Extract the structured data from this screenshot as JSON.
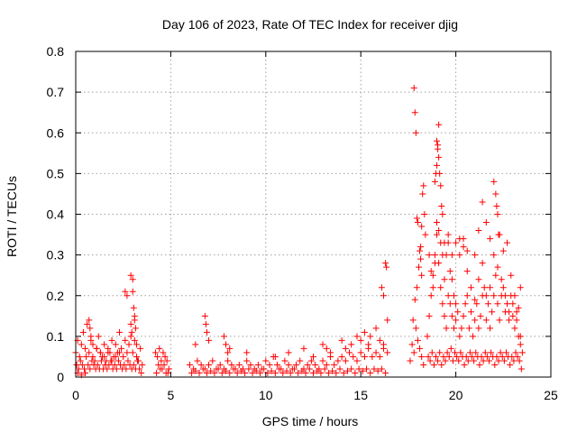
{
  "chart_data": {
    "type": "scatter",
    "title": "Day 106 of 2023, Rate Of TEC Index for receiver djig",
    "xlabel": "GPS time / hours",
    "ylabel": "ROTI / TECUs",
    "xlim": [
      0,
      25
    ],
    "ylim": [
      0,
      0.8
    ],
    "xticks": [
      0,
      5,
      10,
      15,
      20,
      25
    ],
    "yticks": [
      0,
      0.1,
      0.2,
      0.3,
      0.4,
      0.5,
      0.6,
      0.7,
      0.8
    ],
    "xtick_labels": [
      "0",
      "5",
      "10",
      "15",
      "20",
      "25"
    ],
    "ytick_labels": [
      "0",
      "0.1",
      "0.2",
      "0.3",
      "0.4",
      "0.5",
      "0.6",
      "0.7",
      "0.8"
    ],
    "grid": true,
    "marker": "+",
    "color": "#ff0000",
    "series": [
      {
        "x": [
          0.0,
          0.1,
          0.2,
          0.3,
          0.4,
          0.5,
          0.6,
          0.7,
          0.8,
          0.9,
          1.0,
          1.1,
          1.2,
          1.3,
          1.4,
          1.5,
          1.6,
          1.7,
          1.8,
          1.9,
          2.0,
          2.1,
          2.2,
          2.3,
          2.4,
          2.5,
          2.6,
          2.7,
          2.8,
          2.9,
          3.0,
          3.1,
          3.2,
          3.3,
          3.4,
          3.5,
          0.05,
          0.15,
          0.25,
          0.35,
          0.45,
          0.55,
          0.65,
          0.75,
          0.85,
          0.95,
          1.05,
          1.15,
          1.25,
          1.35,
          1.45,
          1.55,
          1.65,
          1.75,
          1.85,
          1.95,
          2.05,
          2.15,
          2.25,
          2.35,
          2.45,
          2.55,
          2.65,
          2.75,
          2.85,
          2.95,
          3.05,
          3.15,
          3.25,
          3.35,
          3.45,
          0.1,
          0.3,
          0.5,
          0.7,
          0.75,
          0.8,
          0.9,
          1.1,
          1.3,
          1.5,
          1.7,
          1.9,
          2.1,
          2.3,
          2.6,
          2.7,
          2.9,
          3.0,
          3.0,
          3.05,
          3.1,
          3.1,
          3.15,
          2.9,
          2.95,
          3.2,
          4.2,
          4.3,
          4.4,
          4.5,
          4.6,
          4.7,
          4.8,
          4.9,
          4.25,
          4.45,
          4.65,
          4.85,
          4.35,
          4.55,
          4.75,
          6.0,
          6.2,
          6.4,
          6.6,
          6.8,
          7.0,
          7.2,
          7.4,
          7.6,
          7.8,
          8.0,
          8.2,
          8.4,
          8.6,
          8.8,
          9.0,
          9.2,
          9.4,
          9.6,
          9.8,
          10.0,
          10.2,
          10.4,
          10.6,
          10.8,
          11.0,
          11.2,
          11.4,
          11.6,
          11.8,
          12.0,
          12.2,
          12.4,
          12.6,
          12.8,
          13.0,
          13.2,
          13.4,
          13.6,
          13.8,
          14.0,
          14.2,
          14.4,
          14.6,
          14.8,
          15.0,
          15.2,
          15.4,
          15.6,
          15.8,
          16.0,
          16.2,
          16.4,
          6.1,
          6.3,
          6.5,
          6.7,
          6.9,
          7.1,
          7.3,
          7.5,
          7.7,
          7.9,
          8.1,
          8.3,
          8.5,
          8.7,
          8.9,
          9.1,
          9.3,
          9.5,
          9.7,
          9.9,
          10.1,
          10.3,
          10.5,
          10.7,
          10.9,
          11.1,
          11.3,
          11.5,
          11.7,
          11.9,
          12.1,
          12.3,
          12.5,
          12.7,
          12.9,
          13.1,
          13.3,
          13.5,
          13.7,
          13.9,
          14.1,
          14.3,
          14.5,
          14.7,
          14.9,
          15.1,
          15.3,
          15.5,
          15.7,
          15.9,
          16.1,
          16.3,
          6.3,
          6.8,
          6.85,
          6.9,
          7.0,
          7.8,
          7.9,
          8.0,
          8.1,
          9.0,
          10.5,
          11.2,
          12.0,
          12.5,
          13.0,
          13.2,
          13.4,
          14.0,
          14.2,
          14.5,
          14.8,
          15.0,
          15.2,
          15.4,
          15.5,
          15.8,
          16.0,
          16.2,
          16.3,
          16.35,
          16.1,
          16.2,
          16.4,
          17.6,
          17.7,
          17.8,
          17.9,
          18.0,
          18.1,
          18.2,
          18.3,
          17.75,
          17.85,
          17.95,
          18.05,
          18.15,
          17.8,
          17.85,
          17.9,
          17.95,
          18.0,
          18.1,
          18.2,
          18.25,
          18.3,
          18.35,
          18.4,
          18.15,
          18.2,
          18.5,
          18.6,
          18.7,
          18.8,
          18.9,
          19.0,
          19.1,
          19.2,
          19.3,
          19.4,
          19.5,
          19.6,
          19.7,
          19.8,
          19.9,
          20.0,
          20.1,
          20.2,
          20.3,
          20.4,
          20.5,
          20.6,
          20.7,
          20.8,
          20.9,
          21.0,
          21.1,
          21.2,
          21.3,
          21.4,
          21.5,
          21.6,
          21.7,
          21.8,
          21.9,
          22.0,
          22.1,
          22.2,
          22.3,
          22.4,
          22.5,
          22.6,
          22.7,
          22.8,
          22.9,
          23.0,
          23.1,
          23.2,
          23.3,
          23.4,
          23.5,
          18.55,
          18.65,
          18.75,
          18.85,
          18.95,
          19.05,
          19.15,
          19.25,
          19.35,
          19.45,
          19.55,
          19.65,
          19.75,
          19.85,
          19.95,
          20.05,
          20.15,
          20.25,
          20.35,
          20.45,
          20.55,
          20.65,
          20.75,
          20.85,
          20.95,
          21.05,
          21.15,
          21.25,
          21.35,
          21.45,
          21.55,
          21.65,
          21.75,
          21.85,
          21.95,
          22.05,
          22.15,
          22.25,
          22.35,
          22.45,
          22.55,
          22.65,
          22.75,
          22.85,
          22.95,
          23.05,
          23.15,
          23.25,
          23.35,
          23.45,
          18.6,
          18.7,
          18.8,
          18.9,
          19.0,
          19.1,
          19.2,
          19.3,
          19.4,
          19.5,
          19.6,
          19.7,
          19.8,
          19.9,
          20.0,
          20.2,
          20.4,
          20.6,
          20.8,
          21.0,
          21.2,
          21.4,
          21.6,
          21.8,
          22.0,
          22.2,
          22.4,
          22.6,
          22.8,
          23.0,
          23.2,
          23.4,
          18.9,
          18.95,
          19.0,
          19.05,
          19.1,
          19.0,
          19.05,
          19.1,
          19.15,
          19.2,
          19.25,
          19.3,
          19.4,
          19.6,
          19.8,
          20.0,
          20.2,
          20.4,
          20.6,
          21.0,
          21.2,
          21.4,
          21.6,
          21.8,
          22.0,
          22.1,
          22.15,
          22.2,
          22.25,
          22.3,
          22.5,
          22.7,
          22.9,
          23.1,
          23.3,
          23.4
        ],
        "y": [
          0.06,
          0.09,
          0.05,
          0.08,
          0.11,
          0.07,
          0.13,
          0.06,
          0.09,
          0.05,
          0.04,
          0.07,
          0.1,
          0.06,
          0.05,
          0.08,
          0.04,
          0.07,
          0.06,
          0.09,
          0.05,
          0.08,
          0.06,
          0.11,
          0.07,
          0.05,
          0.09,
          0.06,
          0.08,
          0.1,
          0.06,
          0.09,
          0.05,
          0.04,
          0.07,
          0.03,
          0.03,
          0.02,
          0.04,
          0.03,
          0.02,
          0.05,
          0.03,
          0.02,
          0.04,
          0.03,
          0.02,
          0.03,
          0.02,
          0.04,
          0.02,
          0.03,
          0.02,
          0.03,
          0.04,
          0.02,
          0.03,
          0.02,
          0.04,
          0.03,
          0.02,
          0.03,
          0.02,
          0.04,
          0.03,
          0.02,
          0.03,
          0.02,
          0.04,
          0.02,
          0.01,
          0.01,
          0.005,
          0.01,
          0.14,
          0.12,
          0.1,
          0.08,
          0.07,
          0.06,
          0.05,
          0.06,
          0.04,
          0.05,
          0.06,
          0.21,
          0.2,
          0.25,
          0.24,
          0.21,
          0.17,
          0.15,
          0.14,
          0.12,
          0.13,
          0.11,
          0.08,
          0.06,
          0.05,
          0.07,
          0.04,
          0.06,
          0.05,
          0.04,
          0.02,
          0.01,
          0.02,
          0.03,
          0.01,
          0.03,
          0.02,
          0.01,
          0.03,
          0.02,
          0.04,
          0.03,
          0.02,
          0.03,
          0.04,
          0.02,
          0.03,
          0.02,
          0.04,
          0.03,
          0.02,
          0.03,
          0.02,
          0.04,
          0.03,
          0.02,
          0.03,
          0.02,
          0.04,
          0.03,
          0.05,
          0.03,
          0.02,
          0.04,
          0.03,
          0.02,
          0.03,
          0.04,
          0.02,
          0.03,
          0.04,
          0.03,
          0.02,
          0.04,
          0.03,
          0.05,
          0.03,
          0.04,
          0.05,
          0.04,
          0.06,
          0.05,
          0.04,
          0.06,
          0.05,
          0.07,
          0.05,
          0.06,
          0.05,
          0.07,
          0.06,
          0.01,
          0.015,
          0.01,
          0.02,
          0.01,
          0.015,
          0.01,
          0.02,
          0.01,
          0.015,
          0.01,
          0.02,
          0.01,
          0.015,
          0.01,
          0.02,
          0.01,
          0.015,
          0.01,
          0.02,
          0.01,
          0.015,
          0.01,
          0.02,
          0.01,
          0.015,
          0.01,
          0.02,
          0.01,
          0.015,
          0.01,
          0.02,
          0.01,
          0.015,
          0.01,
          0.02,
          0.01,
          0.015,
          0.01,
          0.02,
          0.01,
          0.015,
          0.02,
          0.01,
          0.02,
          0.015,
          0.02,
          0.01,
          0.02,
          0.015,
          0.02,
          0.01,
          0.08,
          0.15,
          0.13,
          0.11,
          0.09,
          0.1,
          0.08,
          0.06,
          0.07,
          0.06,
          0.05,
          0.06,
          0.07,
          0.05,
          0.08,
          0.07,
          0.06,
          0.09,
          0.07,
          0.08,
          0.1,
          0.09,
          0.11,
          0.08,
          0.1,
          0.12,
          0.09,
          0.08,
          0.28,
          0.27,
          0.22,
          0.2,
          0.14,
          0.04,
          0.08,
          0.06,
          0.12,
          0.09,
          0.07,
          0.05,
          0.03,
          0.14,
          0.19,
          0.22,
          0.27,
          0.32,
          0.71,
          0.65,
          0.6,
          0.39,
          0.38,
          0.31,
          0.37,
          0.45,
          0.47,
          0.4,
          0.35,
          0.29,
          0.25,
          0.1,
          0.15,
          0.2,
          0.25,
          0.3,
          0.35,
          0.28,
          0.22,
          0.18,
          0.15,
          0.12,
          0.2,
          0.18,
          0.15,
          0.12,
          0.14,
          0.16,
          0.1,
          0.12,
          0.15,
          0.18,
          0.2,
          0.12,
          0.16,
          0.1,
          0.14,
          0.18,
          0.12,
          0.15,
          0.2,
          0.22,
          0.14,
          0.18,
          0.12,
          0.16,
          0.2,
          0.25,
          0.18,
          0.14,
          0.2,
          0.22,
          0.16,
          0.18,
          0.14,
          0.2,
          0.15,
          0.12,
          0.16,
          0.1,
          0.08,
          0.06,
          0.05,
          0.04,
          0.06,
          0.03,
          0.05,
          0.04,
          0.06,
          0.03,
          0.05,
          0.04,
          0.06,
          0.05,
          0.07,
          0.04,
          0.06,
          0.05,
          0.04,
          0.06,
          0.05,
          0.03,
          0.05,
          0.04,
          0.06,
          0.05,
          0.04,
          0.06,
          0.05,
          0.03,
          0.05,
          0.04,
          0.06,
          0.05,
          0.04,
          0.06,
          0.05,
          0.03,
          0.05,
          0.04,
          0.06,
          0.05,
          0.04,
          0.06,
          0.05,
          0.03,
          0.05,
          0.04,
          0.06,
          0.05,
          0.04,
          0.02,
          0.3,
          0.26,
          0.22,
          0.28,
          0.38,
          0.36,
          0.33,
          0.3,
          0.24,
          0.3,
          0.33,
          0.26,
          0.24,
          0.2,
          0.18,
          0.3,
          0.34,
          0.26,
          0.22,
          0.19,
          0.24,
          0.28,
          0.2,
          0.22,
          0.3,
          0.27,
          0.24,
          0.2,
          0.16,
          0.18,
          0.14,
          0.1,
          0.48,
          0.5,
          0.52,
          0.57,
          0.62,
          0.58,
          0.56,
          0.54,
          0.5,
          0.47,
          0.42,
          0.4,
          0.33,
          0.35,
          0.3,
          0.33,
          0.34,
          0.32,
          0.31,
          0.3,
          0.36,
          0.43,
          0.38,
          0.34,
          0.48,
          0.45,
          0.42,
          0.4,
          0.35,
          0.35,
          0.31,
          0.33,
          0.25,
          0.2,
          0.17,
          0.22
        ]
      }
    ]
  }
}
